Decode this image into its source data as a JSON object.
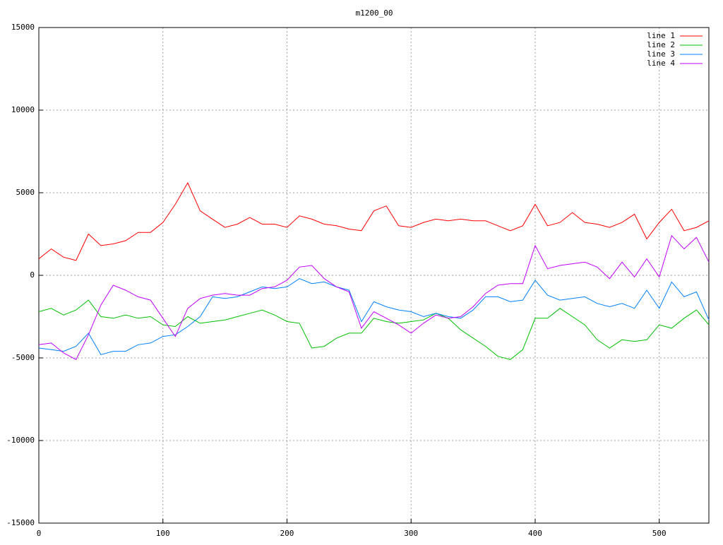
{
  "chart_data": {
    "type": "line",
    "title": "m1200_00",
    "x": [
      0,
      10,
      20,
      30,
      40,
      50,
      60,
      70,
      80,
      90,
      100,
      110,
      120,
      130,
      140,
      150,
      160,
      170,
      180,
      190,
      200,
      210,
      220,
      230,
      240,
      250,
      260,
      270,
      280,
      290,
      300,
      310,
      320,
      330,
      340,
      350,
      360,
      370,
      380,
      390,
      400,
      410,
      420,
      430,
      440,
      450,
      460,
      470,
      480,
      490,
      500,
      510,
      520,
      530,
      540
    ],
    "series": [
      {
        "name": "line 1",
        "color": "#ff0000",
        "values": [
          1000,
          1600,
          1100,
          900,
          2500,
          1800,
          1900,
          2100,
          2600,
          2600,
          3200,
          4300,
          5600,
          3900,
          3400,
          2900,
          3100,
          3500,
          3100,
          3100,
          2900,
          3600,
          3400,
          3100,
          3000,
          2800,
          2700,
          3900,
          4200,
          3000,
          2900,
          3200,
          3400,
          3300,
          3400,
          3300,
          3300,
          3000,
          2700,
          3000,
          4300,
          3000,
          3200,
          3800,
          3200,
          3100,
          2900,
          3200,
          3700,
          2200,
          3200,
          4000,
          2700,
          2900,
          3300
        ]
      },
      {
        "name": "line 2",
        "color": "#00c000",
        "values": [
          -2200,
          -2000,
          -2400,
          -2100,
          -1500,
          -2500,
          -2600,
          -2400,
          -2600,
          -2500,
          -3000,
          -3100,
          -2500,
          -2900,
          -2800,
          -2700,
          -2500,
          -2300,
          -2100,
          -2400,
          -2800,
          -2900,
          -4400,
          -4300,
          -3800,
          -3500,
          -3500,
          -2600,
          -2800,
          -2900,
          -2800,
          -2700,
          -2300,
          -2600,
          -3300,
          -3800,
          -4300,
          -4900,
          -5100,
          -4500,
          -2600,
          -2600,
          -2000,
          -2500,
          -3000,
          -3900,
          -4400,
          -3900,
          -4000,
          -3900,
          -3000,
          -3200,
          -2600,
          -2100,
          -3000
        ]
      },
      {
        "name": "line 3",
        "color": "#0080ff",
        "values": [
          -4400,
          -4500,
          -4600,
          -4300,
          -3500,
          -4800,
          -4600,
          -4600,
          -4200,
          -4100,
          -3700,
          -3600,
          -3100,
          -2500,
          -1300,
          -1400,
          -1300,
          -1000,
          -700,
          -800,
          -700,
          -200,
          -500,
          -400,
          -700,
          -900,
          -2800,
          -1600,
          -1900,
          -2100,
          -2200,
          -2500,
          -2300,
          -2500,
          -2600,
          -2100,
          -1300,
          -1300,
          -1600,
          -1500,
          -300,
          -1200,
          -1500,
          -1400,
          -1300,
          -1700,
          -1900,
          -1700,
          -2000,
          -900,
          -2000,
          -400,
          -1300,
          -1000,
          -2700
        ]
      },
      {
        "name": "line 4",
        "color": "#c000ff",
        "values": [
          -4200,
          -4100,
          -4700,
          -5100,
          -3600,
          -1800,
          -600,
          -900,
          -1300,
          -1500,
          -2600,
          -3700,
          -2000,
          -1400,
          -1200,
          -1100,
          -1200,
          -1200,
          -800,
          -700,
          -300,
          500,
          600,
          -200,
          -700,
          -1000,
          -3200,
          -2200,
          -2600,
          -3000,
          -3500,
          -2900,
          -2400,
          -2600,
          -2500,
          -1900,
          -1100,
          -600,
          -500,
          -500,
          1800,
          400,
          600,
          700,
          800,
          500,
          -200,
          800,
          -100,
          1000,
          -100,
          2400,
          1600,
          2300,
          800
        ]
      }
    ],
    "xlim": [
      0,
      540
    ],
    "xticks": [
      0,
      100,
      200,
      300,
      400,
      500
    ],
    "ylim": [
      -15000,
      15000
    ],
    "yticks": [
      -15000,
      -10000,
      -5000,
      0,
      5000,
      10000,
      15000
    ],
    "grid": true,
    "legend": "top-right"
  }
}
